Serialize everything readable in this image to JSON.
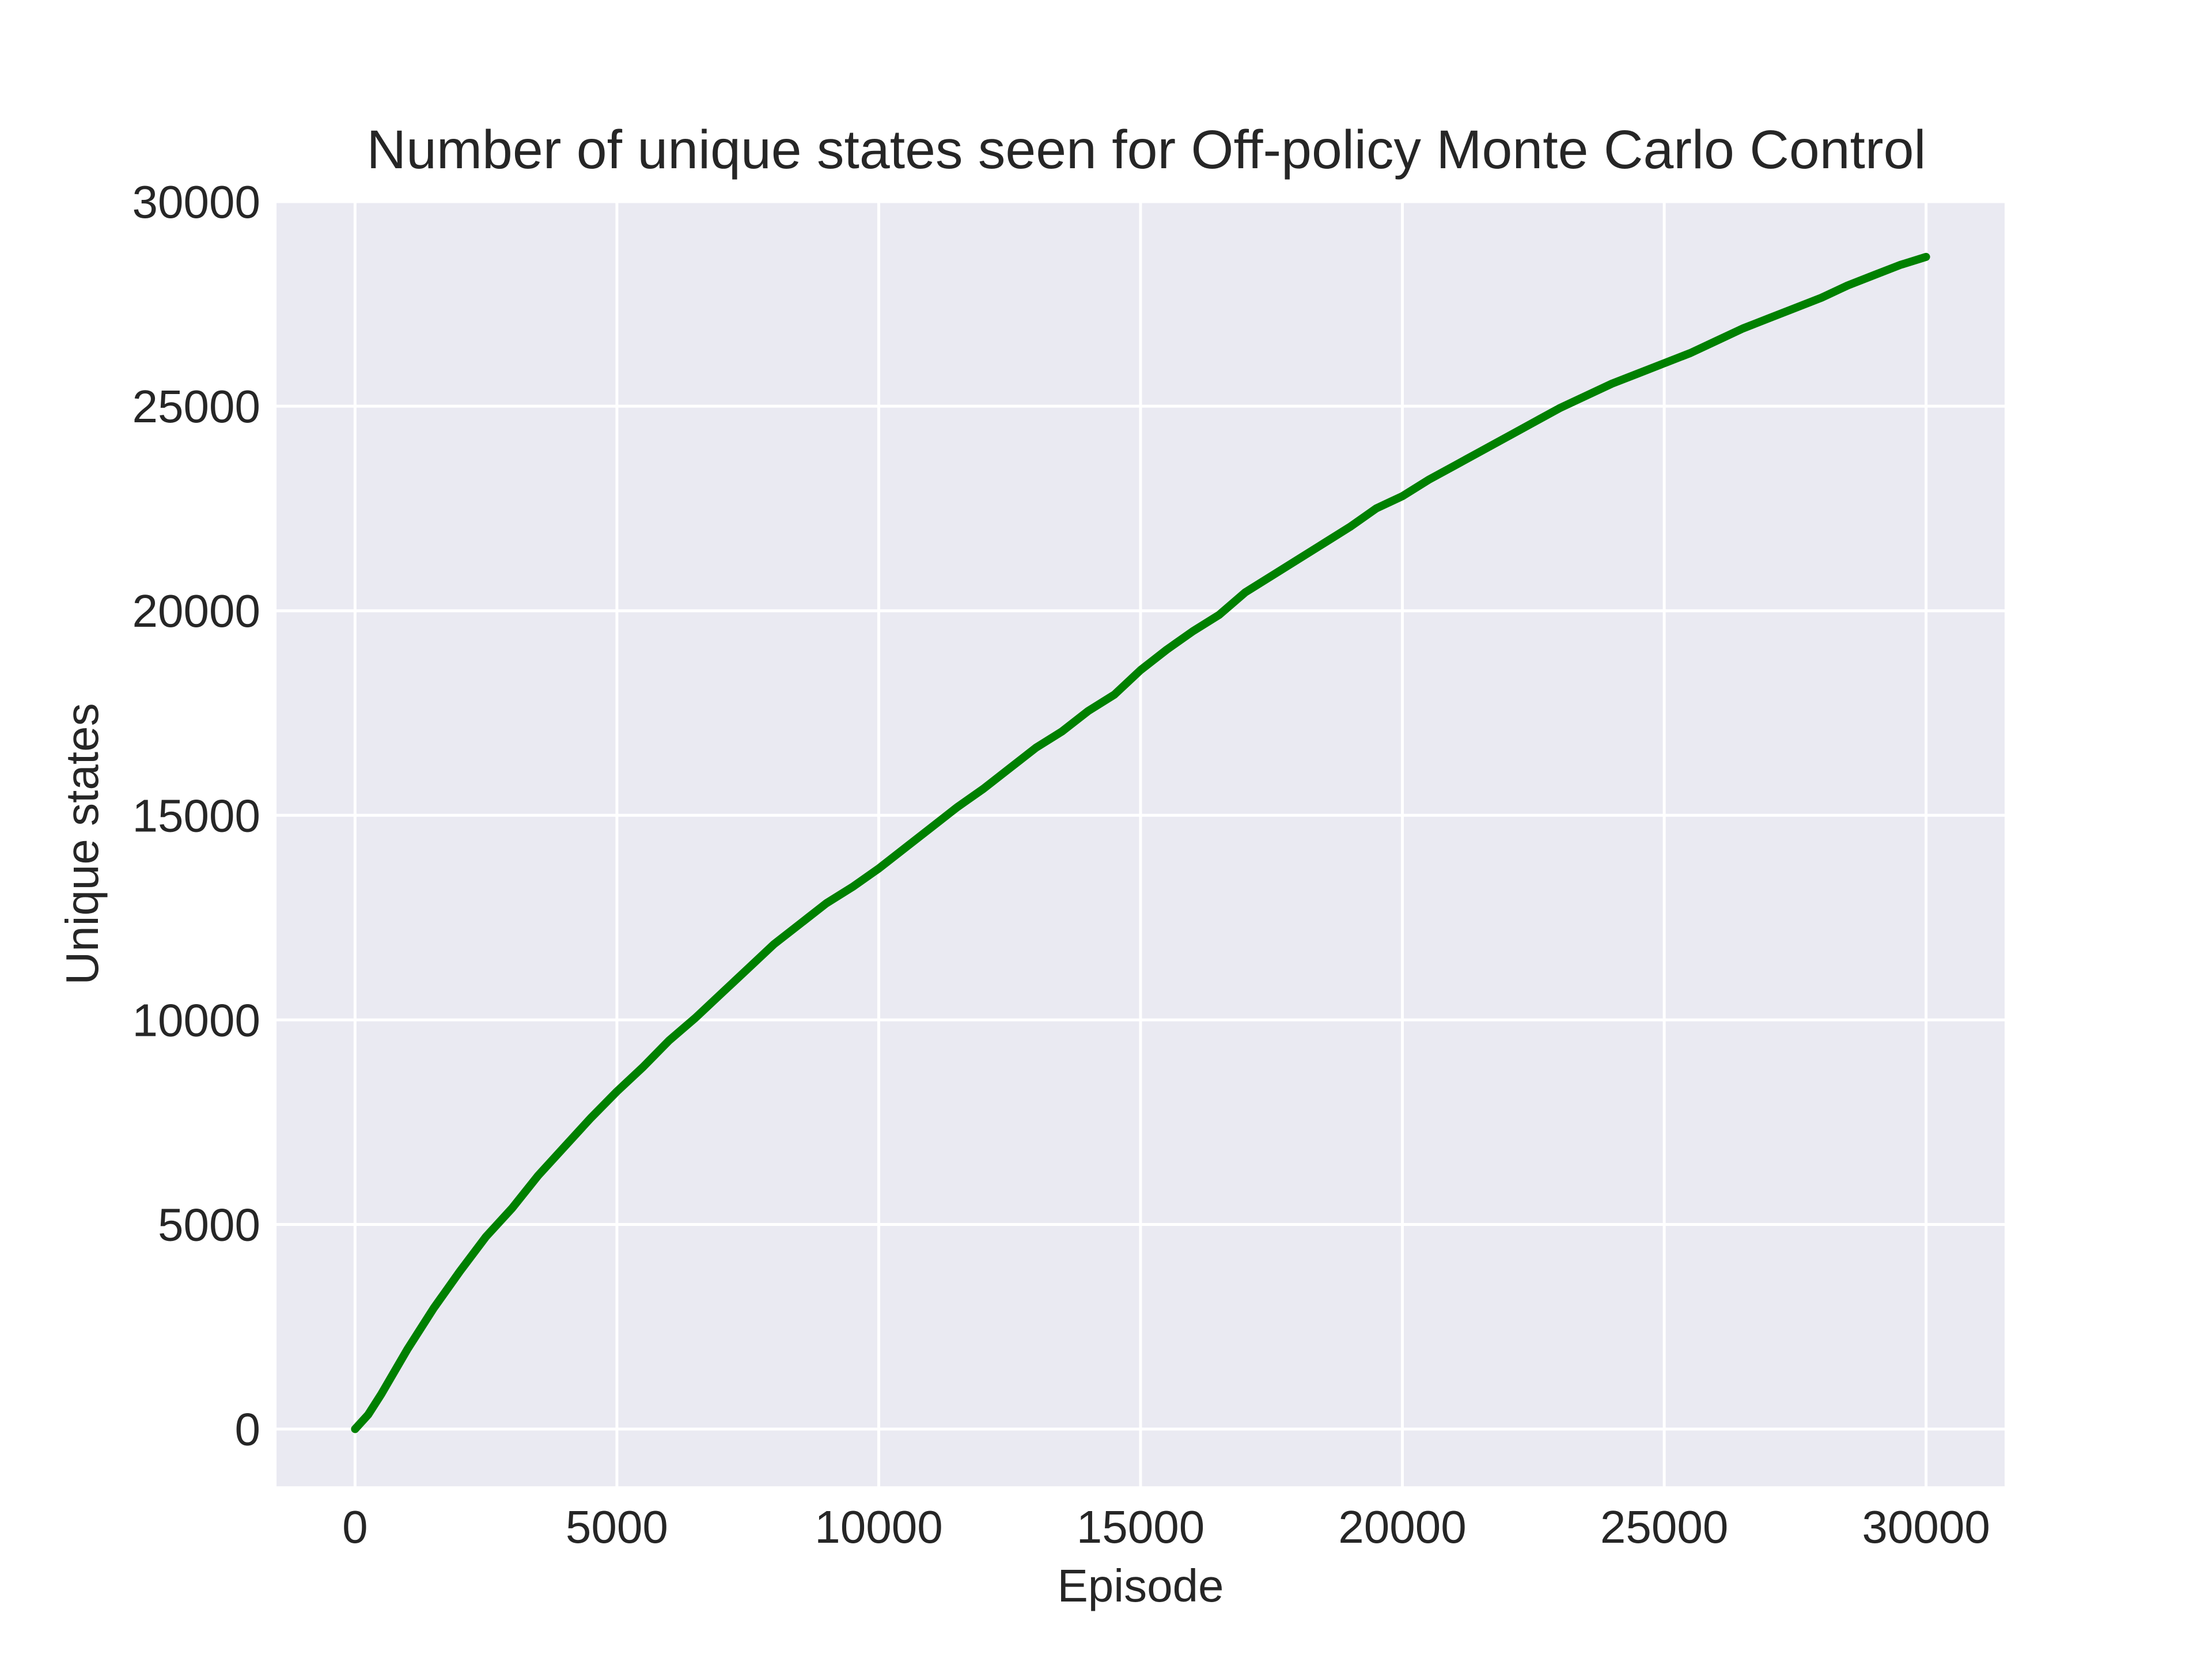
{
  "chart_data": {
    "type": "line",
    "title": "Number of unique states seen for Off-policy Monte Carlo Control",
    "xlabel": "Episode",
    "ylabel": "Unique states",
    "xlim": [
      -1500,
      31500
    ],
    "ylim": [
      -1400,
      30000
    ],
    "xticks": [
      0,
      5000,
      10000,
      15000,
      20000,
      25000,
      30000
    ],
    "xtick_labels": [
      "0",
      "5000",
      "10000",
      "15000",
      "20000",
      "25000",
      "30000"
    ],
    "yticks": [
      0,
      5000,
      10000,
      15000,
      20000,
      25000,
      30000
    ],
    "ytick_labels": [
      "0",
      "5000",
      "10000",
      "15000",
      "20000",
      "25000",
      "30000"
    ],
    "grid": true,
    "legend": "none",
    "colors": {
      "line": "#008000",
      "plot_background": "#eaeaf2",
      "grid": "#ffffff",
      "text": "#262626"
    },
    "series": [
      {
        "x": [
          0,
          250,
          500,
          1000,
          1500,
          2000,
          2500,
          3000,
          3500,
          4000,
          4500,
          5000,
          5500,
          6000,
          6500,
          7000,
          7500,
          8000,
          8500,
          9000,
          9500,
          10000,
          10500,
          11000,
          11500,
          12000,
          12500,
          13000,
          13500,
          14000,
          14500,
          15000,
          15500,
          16000,
          16500,
          17000,
          17500,
          18000,
          18500,
          19000,
          19500,
          20000,
          20500,
          21000,
          21500,
          22000,
          22500,
          23000,
          23500,
          24000,
          24500,
          25000,
          25500,
          26000,
          26500,
          27000,
          27500,
          28000,
          28500,
          29000,
          29500,
          30000
        ],
        "y": [
          0,
          350,
          850,
          1950,
          2950,
          3850,
          4700,
          5400,
          6200,
          6900,
          7600,
          8250,
          8850,
          9500,
          10050,
          10650,
          11250,
          11850,
          12350,
          12850,
          13250,
          13700,
          14200,
          14700,
          15200,
          15650,
          16150,
          16650,
          17050,
          17550,
          17950,
          18550,
          19050,
          19500,
          19900,
          20450,
          20850,
          21250,
          21650,
          22050,
          22500,
          22800,
          23200,
          23550,
          23900,
          24250,
          24600,
          24950,
          25250,
          25550,
          25800,
          26050,
          26300,
          26600,
          26900,
          27150,
          27400,
          27650,
          27950,
          28200,
          28450,
          28650
        ]
      }
    ]
  }
}
